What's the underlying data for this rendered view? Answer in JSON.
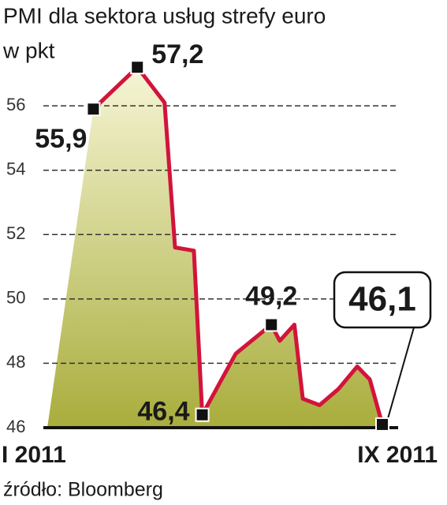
{
  "chart_data": {
    "type": "area-line",
    "title": "PMI dla sektora usług strefy euro",
    "subtitle": "w pkt",
    "source": "źródło: Bloomberg",
    "x": [
      2.1,
      3.15,
      3.8,
      4.05,
      4.5,
      4.7,
      5.5,
      6.35,
      6.55,
      6.9,
      7.1,
      7.5,
      7.95,
      8.4,
      8.7,
      9
    ],
    "values": [
      55.9,
      57.2,
      56.1,
      51.6,
      51.5,
      46.4,
      48.3,
      49.2,
      48.7,
      49.2,
      46.9,
      46.7,
      47.2,
      47.9,
      47.5,
      46.1
    ],
    "value_labels": [
      "55,9",
      "57,2",
      null,
      null,
      null,
      "46,4",
      null,
      "49,2",
      null,
      null,
      null,
      null,
      null,
      null,
      null,
      "46,1"
    ],
    "color": "#d2143c",
    "xlim": [
      1,
      9
    ],
    "xticks": [
      {
        "value": 1,
        "label": "I 2011"
      },
      {
        "value": 9,
        "label": "IX 2011"
      }
    ],
    "ylim": [
      46,
      57.5
    ],
    "yticks": [
      46,
      48,
      50,
      52,
      54,
      56
    ],
    "grid": true
  }
}
